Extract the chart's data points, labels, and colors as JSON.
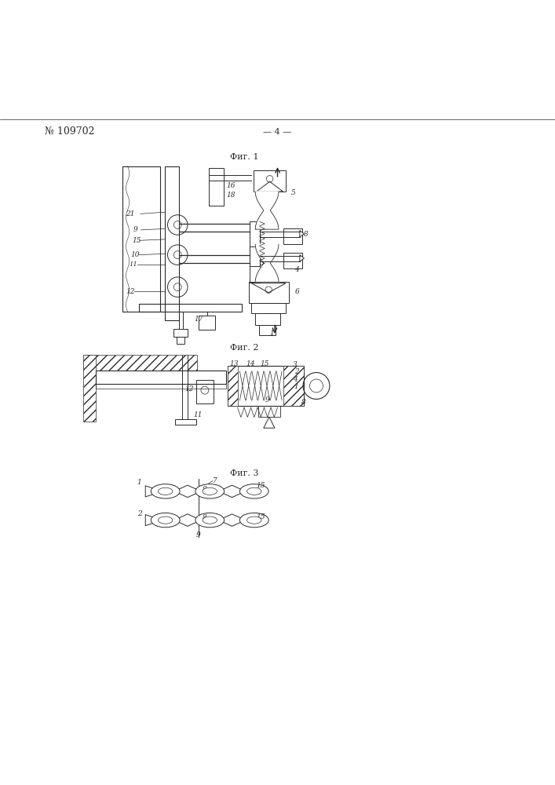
{
  "title": "№ 109702",
  "page_num": "— 4 —",
  "fig1_label": "Фиг. 1",
  "fig2_label": "Фиг. 2",
  "fig3_label": "Фиг. 3",
  "bg_color": "#ffffff",
  "line_color": "#2a2a2a"
}
